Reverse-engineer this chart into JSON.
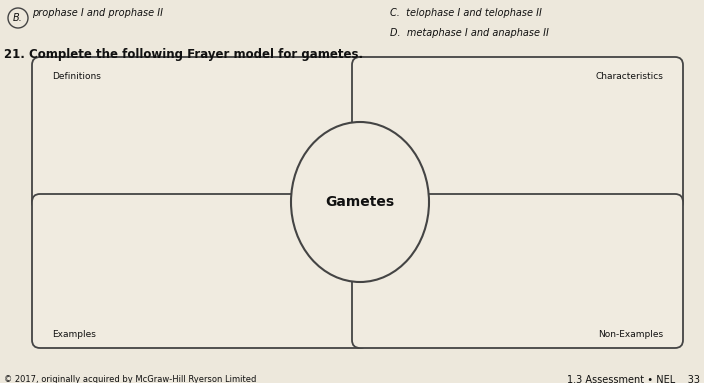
{
  "background_color": "#ede8dc",
  "title_line1": "C.  telophase I and telophase II",
  "title_line2": "prophase I and prophase II",
  "title_line3": "D.  metaphase I and anaphase II",
  "question": "21. Complete the following Frayer model for gametes.",
  "center_label": "Gametes",
  "top_left_label": "Definitions",
  "top_right_label": "Characteristics",
  "bottom_left_label": "Examples",
  "bottom_right_label": "Non-Examples",
  "footer_left": "© 2017, originally acquired by McGraw-Hill Ryerson Limited",
  "footer_right": "1.3 Assessment • NEL    33",
  "box_color": "#f0ebe0",
  "box_edge_color": "#444444",
  "text_color": "#111111"
}
